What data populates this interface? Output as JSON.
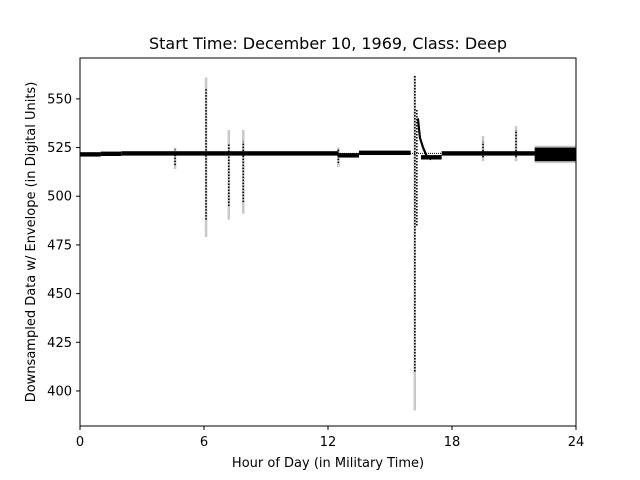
{
  "chart_data": {
    "type": "line",
    "title": "Start Time: December 10, 1969, Class: Deep",
    "xlabel": "Hour of Day (in Military Time)",
    "ylabel": "Downsampled Data w/ Envelope (in Digital Units)",
    "xlim": [
      0,
      24
    ],
    "ylim": [
      382,
      571
    ],
    "xticks": [
      0,
      6,
      12,
      18,
      24
    ],
    "yticks": [
      400,
      425,
      450,
      475,
      500,
      525,
      550
    ],
    "grid": false,
    "series": [
      {
        "role": "data",
        "color": "#000000",
        "style": "dotted",
        "baseline": 522,
        "baseline_segments": [
          {
            "x": [
              0,
              1.0
            ],
            "y": 521.5
          },
          {
            "x": [
              1.0,
              2.0
            ],
            "y": 521.8
          },
          {
            "x": [
              2.0,
              12.5
            ],
            "y": 522.0
          },
          {
            "x": [
              12.5,
              13.5
            ],
            "y": 521.0
          },
          {
            "x": [
              13.5,
              16.0
            ],
            "y": 522.3
          },
          {
            "x": [
              16.5,
              17.5
            ],
            "y": 520.0
          },
          {
            "x": [
              17.5,
              21.0
            ],
            "y": 522.0
          },
          {
            "x": [
              21.0,
              22.0
            ],
            "y": 522.0
          },
          {
            "x": [
              22.0,
              24.0
            ],
            "y": 522.0
          }
        ],
        "spikes": [
          {
            "x": 4.6,
            "y": [
              516,
              524
            ]
          },
          {
            "x": 6.1,
            "y": [
              488,
              555
            ]
          },
          {
            "x": 7.2,
            "y": [
              495,
              527
            ]
          },
          {
            "x": 7.9,
            "y": [
              497,
              528
            ]
          },
          {
            "x": 12.5,
            "y": [
              517,
              524
            ]
          },
          {
            "x": 16.2,
            "y": [
              410,
              562
            ]
          },
          {
            "x": 16.3,
            "y": [
              485,
              545
            ]
          },
          {
            "x": 19.5,
            "y": [
              520,
              528
            ]
          },
          {
            "x": 21.1,
            "y": [
              520,
              534
            ]
          }
        ]
      },
      {
        "role": "envelope",
        "color": "#c8c8c8",
        "spikes": [
          {
            "x": 4.6,
            "y": [
              514,
              525
            ]
          },
          {
            "x": 6.1,
            "y": [
              479,
              561
            ]
          },
          {
            "x": 7.2,
            "y": [
              488,
              534
            ]
          },
          {
            "x": 7.9,
            "y": [
              491,
              534
            ]
          },
          {
            "x": 12.5,
            "y": [
              515,
              525
            ]
          },
          {
            "x": 16.2,
            "y": [
              390,
              562
            ]
          },
          {
            "x": 19.5,
            "y": [
              518,
              531
            ]
          },
          {
            "x": 21.1,
            "y": [
              518,
              536
            ]
          }
        ],
        "band_segments": [
          {
            "x": [
              22.0,
              24.0
            ],
            "y": [
              517,
              526
            ]
          }
        ]
      }
    ]
  }
}
